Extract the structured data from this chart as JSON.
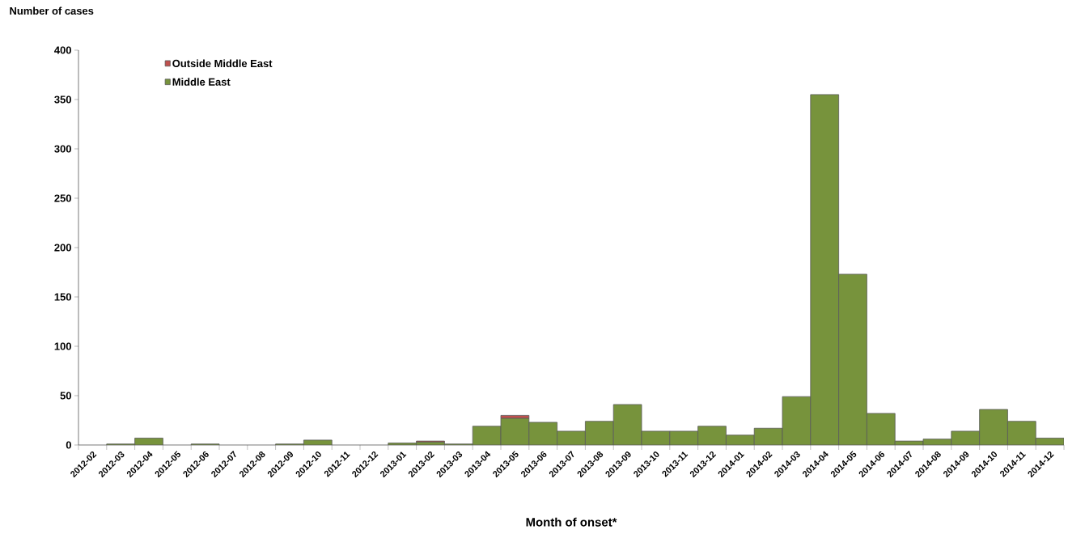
{
  "chart_data": {
    "type": "bar",
    "stacked": true,
    "xlabel": "Month of onset*",
    "ylabel": "Number of cases",
    "categories": [
      "2012-02",
      "2012-03",
      "2012-04",
      "2012-05",
      "2012-06",
      "2012-07",
      "2012-08",
      "2012-09",
      "2012-10",
      "2012-11",
      "2012-12",
      "2013-01",
      "2013-02",
      "2013-03",
      "2013-04",
      "2013-05",
      "2013-06",
      "2013-07",
      "2013-08",
      "2013-09",
      "2013-10",
      "2013-11",
      "2013-12",
      "2014-01",
      "2014-02",
      "2014-03",
      "2014-04",
      "2014-05",
      "2014-06",
      "2014-07",
      "2014-08",
      "2014-09",
      "2014-10",
      "2014-11",
      "2014-12"
    ],
    "series": [
      {
        "name": "Middle East",
        "color": "#77933c",
        "values": [
          0,
          1,
          7,
          0,
          1,
          0,
          0,
          1,
          5,
          0,
          0,
          2,
          3,
          1,
          19,
          27,
          23,
          14,
          24,
          41,
          14,
          14,
          19,
          10,
          17,
          49,
          355,
          173,
          32,
          4,
          6,
          14,
          36,
          24,
          7
        ]
      },
      {
        "name": "Outside Middle East",
        "color": "#c0504d",
        "values": [
          0,
          0,
          0,
          0,
          0,
          0,
          0,
          0,
          0,
          0,
          0,
          0,
          1,
          0,
          0,
          3,
          0,
          0,
          0,
          0,
          0,
          0,
          0,
          0,
          0,
          0,
          0,
          0,
          0,
          0,
          0,
          0,
          0,
          0,
          0
        ]
      }
    ],
    "ylim": [
      0,
      400
    ],
    "yticks": [
      0,
      50,
      100,
      150,
      200,
      250,
      300,
      350,
      400
    ],
    "grid": false,
    "legend": "top left"
  }
}
